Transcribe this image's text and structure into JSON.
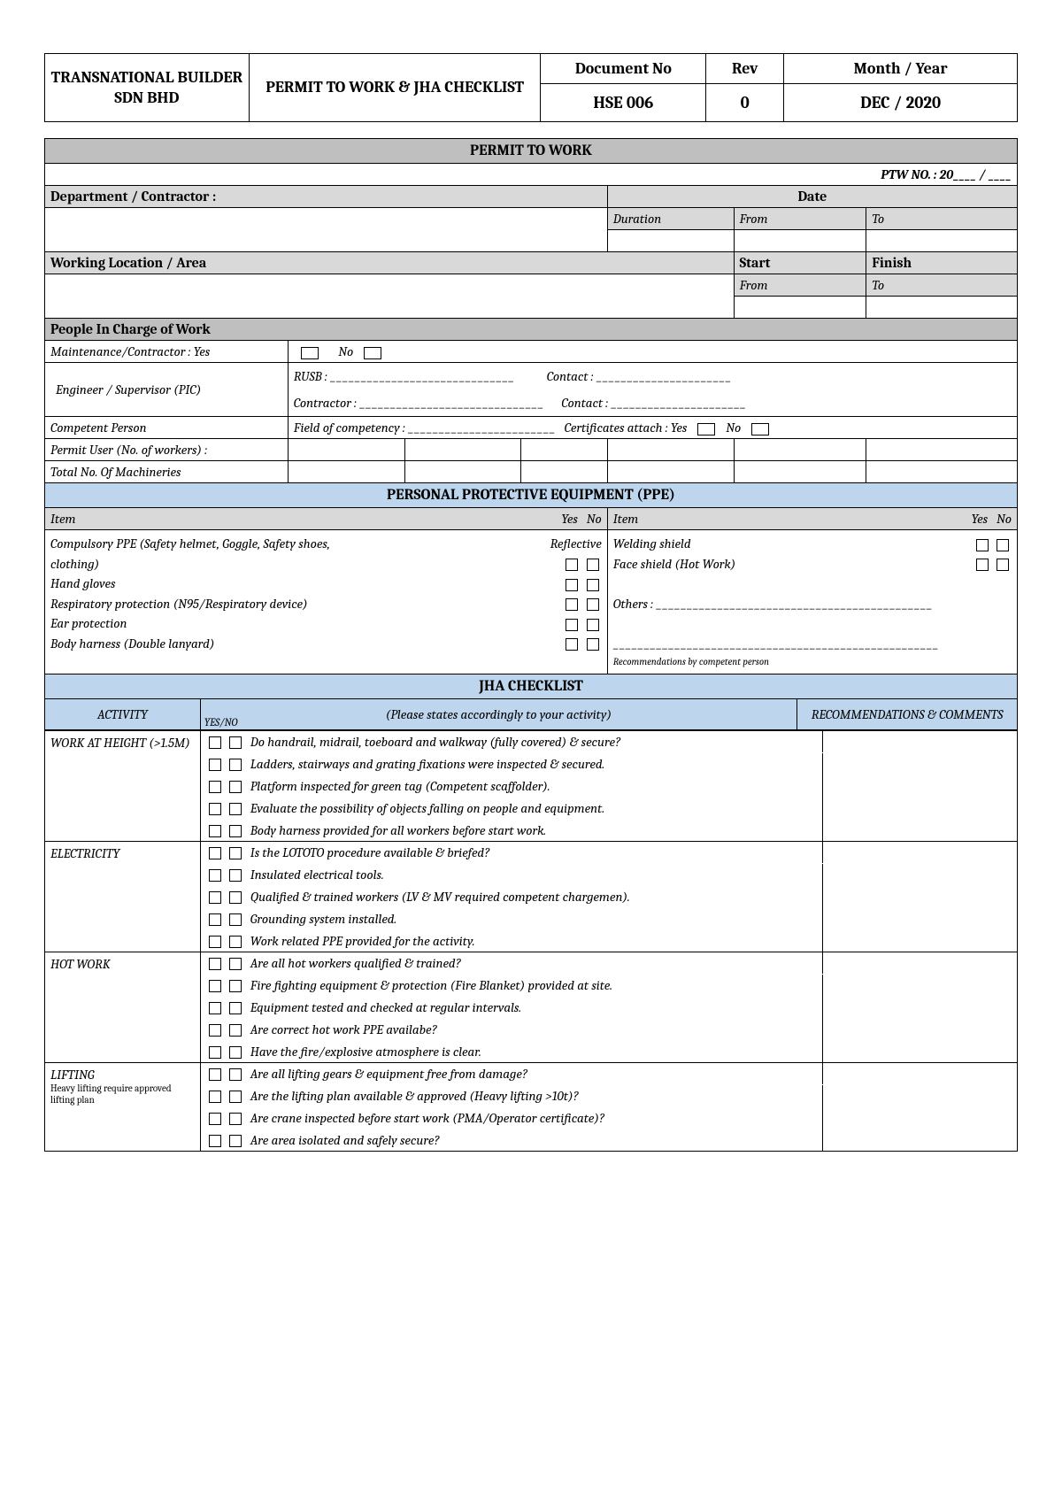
{
  "header": {
    "company": "TRANSNATIONAL BUILDER SDN BHD",
    "title": "PERMIT TO WORK & JHA CHECKLIST",
    "docno_label": "Document No",
    "rev_label": "Rev",
    "monthyear_label": "Month / Year",
    "docno": "HSE 006",
    "rev": "0",
    "monthyear": "DEC / 2020"
  },
  "ptw": {
    "section": "PERMIT TO WORK",
    "ptwno": "PTW NO. : 20____ / ____",
    "dept": "Department / Contractor :",
    "date": "Date",
    "duration": "Duration",
    "from": "From",
    "to": "To",
    "loc": "Working Location / Area",
    "start": "Start",
    "finish": "Finish",
    "people": "People In Charge of Work",
    "maint": "Maintenance/Contractor : Yes",
    "no": "No",
    "eng": "Engineer / Supervisor (PIC)",
    "rusb": "RUSB : ______________________________",
    "contact": "Contact : ______________________",
    "contractor": "Contractor : ______________________________",
    "contact2": "Contact : ______________________",
    "comp": "Competent Person",
    "field": "Field of competency : ________________________",
    "cert": "Certificates attach : Yes",
    "permituser": "Permit User (No. of workers) :",
    "totalmach": "Total No. Of Machineries"
  },
  "ppe": {
    "section": "PERSONAL PROTECTIVE EQUIPMENT (PPE)",
    "item": "Item",
    "yes": "Yes",
    "no": "No",
    "left": [
      "Compulsory PPE (Safety helmet, Goggle, Safety shoes,",
      "clothing)",
      "Hand gloves",
      "Respiratory protection (N95/Respiratory device)",
      "Ear protection",
      "Body harness (Double lanyard)"
    ],
    "reflective": "Reflective",
    "right": [
      "Welding shield",
      "Face shield (Hot Work)",
      "",
      "Others : _____________________________________________",
      "",
      "_____________________________________________________"
    ],
    "reco": "Recommendations by competent person"
  },
  "jha": {
    "section": "JHA CHECKLIST",
    "activity": "ACTIVITY",
    "instr": "(Please states accordingly to your activity)",
    "yesno": "YES/NO",
    "reco": "RECOMMENDATIONS & COMMENTS",
    "groups": [
      {
        "title": "WORK AT HEIGHT (>1.5M)",
        "subtitle": "",
        "items": [
          "Do handrail, midrail, toeboard and walkway (fully covered) & secure?",
          "Ladders, stairways and grating fixations were inspected & secured.",
          "Platform inspected for green tag (Competent scaffolder).",
          "Evaluate the possibility of objects falling on people and equipment.",
          "Body harness provided for all workers before start work."
        ]
      },
      {
        "title": "ELECTRICITY",
        "subtitle": "",
        "items": [
          "Is the LOTOTO procedure available & briefed?",
          "Insulated electrical tools.",
          "Qualified & trained workers (LV & MV required competent chargemen).",
          "Grounding system installed.",
          "Work related PPE provided for the activity."
        ]
      },
      {
        "title": "HOT WORK",
        "subtitle": "",
        "items": [
          "Are all hot workers qualified & trained?",
          "Fire fighting equipment & protection (Fire Blanket) provided at site.",
          "Equipment tested and checked at regular intervals.",
          "Are correct hot work PPE availabe?",
          "Have the fire/explosive atmosphere is clear."
        ]
      },
      {
        "title": "LIFTING",
        "subtitle": "Heavy lifting require approved lifting plan",
        "items": [
          "Are all lifting gears & equipment free from damage?",
          "Are the lifting plan available & approved (Heavy lifting >10t)?",
          "Are crane inspected before start work (PMA/Operator certificate)?",
          "Are area isolated and safely secure?"
        ]
      }
    ]
  }
}
